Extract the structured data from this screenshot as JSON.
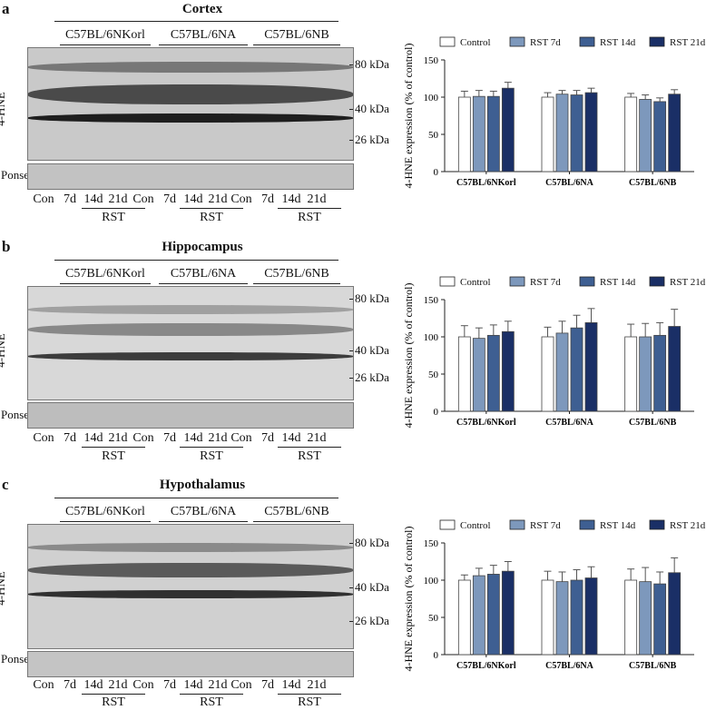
{
  "strains": [
    "C57BL/6NKorl",
    "C57BL/6NA",
    "C57BL/6NB"
  ],
  "lanes": [
    "Con",
    "7d",
    "14d",
    "21d"
  ],
  "rst_label": "RST",
  "blot_ylabel": "4-HNE",
  "ponseau_label": "Ponseau",
  "markers": [
    "80 kDa",
    "40 kDa",
    "26 kDa"
  ],
  "panels": [
    {
      "label": "a",
      "region": "Cortex"
    },
    {
      "label": "b",
      "region": "Hippocampus"
    },
    {
      "label": "c",
      "region": "Hypothalamus"
    }
  ],
  "colors": {
    "Control": "#ffffff",
    "RST 7d": "#7d98bc",
    "RST 14d": "#3e5f92",
    "RST 21d": "#1a2f66"
  },
  "chart_data": [
    {
      "type": "bar",
      "panel": "a",
      "categories": [
        "C57BL/6NKorl",
        "C57BL/6NA",
        "C57BL/6NB"
      ],
      "ylabel": "4-HNE expression (% of control)",
      "xlabel": "",
      "ylim": [
        0,
        150
      ],
      "yticks": [
        0,
        50,
        100,
        150
      ],
      "legend_position": "top",
      "series": [
        {
          "name": "Control",
          "values": [
            100,
            100,
            100
          ],
          "err": [
            8,
            6,
            5
          ]
        },
        {
          "name": "RST 7d",
          "values": [
            101,
            104,
            97
          ],
          "err": [
            8,
            5,
            6
          ]
        },
        {
          "name": "RST 14d",
          "values": [
            101,
            103,
            94
          ],
          "err": [
            7,
            6,
            5
          ]
        },
        {
          "name": "RST 21d",
          "values": [
            112,
            106,
            104
          ],
          "err": [
            8,
            6,
            6
          ]
        }
      ]
    },
    {
      "type": "bar",
      "panel": "b",
      "categories": [
        "C57BL/6NKorl",
        "C57BL/6NA",
        "C57BL/6NB"
      ],
      "ylabel": "4-HNE expression (% of control)",
      "xlabel": "",
      "ylim": [
        0,
        150
      ],
      "yticks": [
        0,
        50,
        100,
        150
      ],
      "legend_position": "top",
      "series": [
        {
          "name": "Control",
          "values": [
            100,
            100,
            100
          ],
          "err": [
            15,
            13,
            17
          ]
        },
        {
          "name": "RST 7d",
          "values": [
            98,
            105,
            100
          ],
          "err": [
            14,
            16,
            18
          ]
        },
        {
          "name": "RST 14d",
          "values": [
            102,
            112,
            102
          ],
          "err": [
            14,
            17,
            17
          ]
        },
        {
          "name": "RST 21d",
          "values": [
            107,
            119,
            114
          ],
          "err": [
            14,
            19,
            23
          ]
        }
      ]
    },
    {
      "type": "bar",
      "panel": "c",
      "categories": [
        "C57BL/6NKorl",
        "C57BL/6NA",
        "C57BL/6NB"
      ],
      "ylabel": "4-HNE expression (% of control)",
      "xlabel": "",
      "ylim": [
        0,
        150
      ],
      "yticks": [
        0,
        50,
        100,
        150
      ],
      "legend_position": "top",
      "series": [
        {
          "name": "Control",
          "values": [
            100,
            100,
            100
          ],
          "err": [
            7,
            12,
            15
          ]
        },
        {
          "name": "RST 7d",
          "values": [
            106,
            98,
            98
          ],
          "err": [
            10,
            13,
            19
          ]
        },
        {
          "name": "RST 14d",
          "values": [
            108,
            100,
            95
          ],
          "err": [
            12,
            14,
            16
          ]
        },
        {
          "name": "RST 21d",
          "values": [
            112,
            103,
            110
          ],
          "err": [
            13,
            15,
            20
          ]
        }
      ]
    }
  ]
}
